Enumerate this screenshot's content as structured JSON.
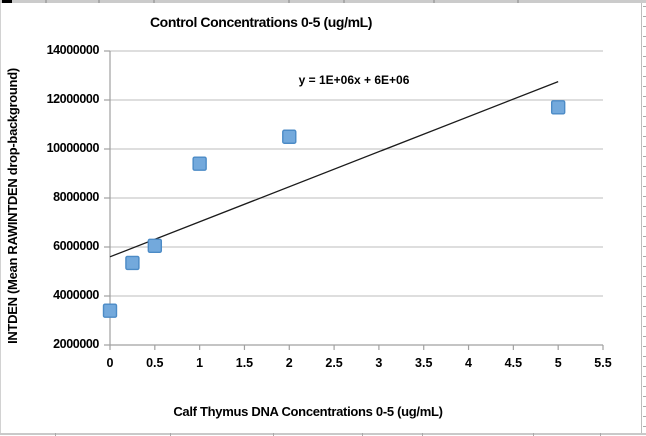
{
  "chart_data": {
    "type": "scatter",
    "title": "Control Concentrations 0-5 (ug/mL)",
    "xlabel": "Calf Thymus DNA Concentrations 0-5 (ug/mL)",
    "ylabel": "INTDEN (Mean RAWINTDEN drop-background)",
    "x": [
      0,
      0.25,
      0.5,
      1,
      2,
      5
    ],
    "y": [
      3400000,
      5350000,
      6050000,
      9400000,
      10500000,
      11700000
    ],
    "xlim": [
      0,
      5.5
    ],
    "ylim": [
      2000000,
      14000000
    ],
    "x_ticks": [
      0,
      0.5,
      1,
      1.5,
      2,
      2.5,
      3,
      3.5,
      4,
      4.5,
      5,
      5.5
    ],
    "y_ticks": [
      2000000,
      4000000,
      6000000,
      8000000,
      10000000,
      12000000,
      14000000
    ],
    "grid": true,
    "legend": "none",
    "trendline": {
      "label": "y = 1E+06x + 6E+06",
      "slope": 1430000,
      "intercept": 5600000,
      "x_start": 0,
      "x_end": 5
    },
    "colors": {
      "marker_fill": "#73A9DC",
      "marker_border": "#4C8BC6",
      "gridline": "#C9C9C9",
      "axis": "#A0A0A0",
      "trendline": "#1B1B1B",
      "text": "#000000"
    }
  }
}
